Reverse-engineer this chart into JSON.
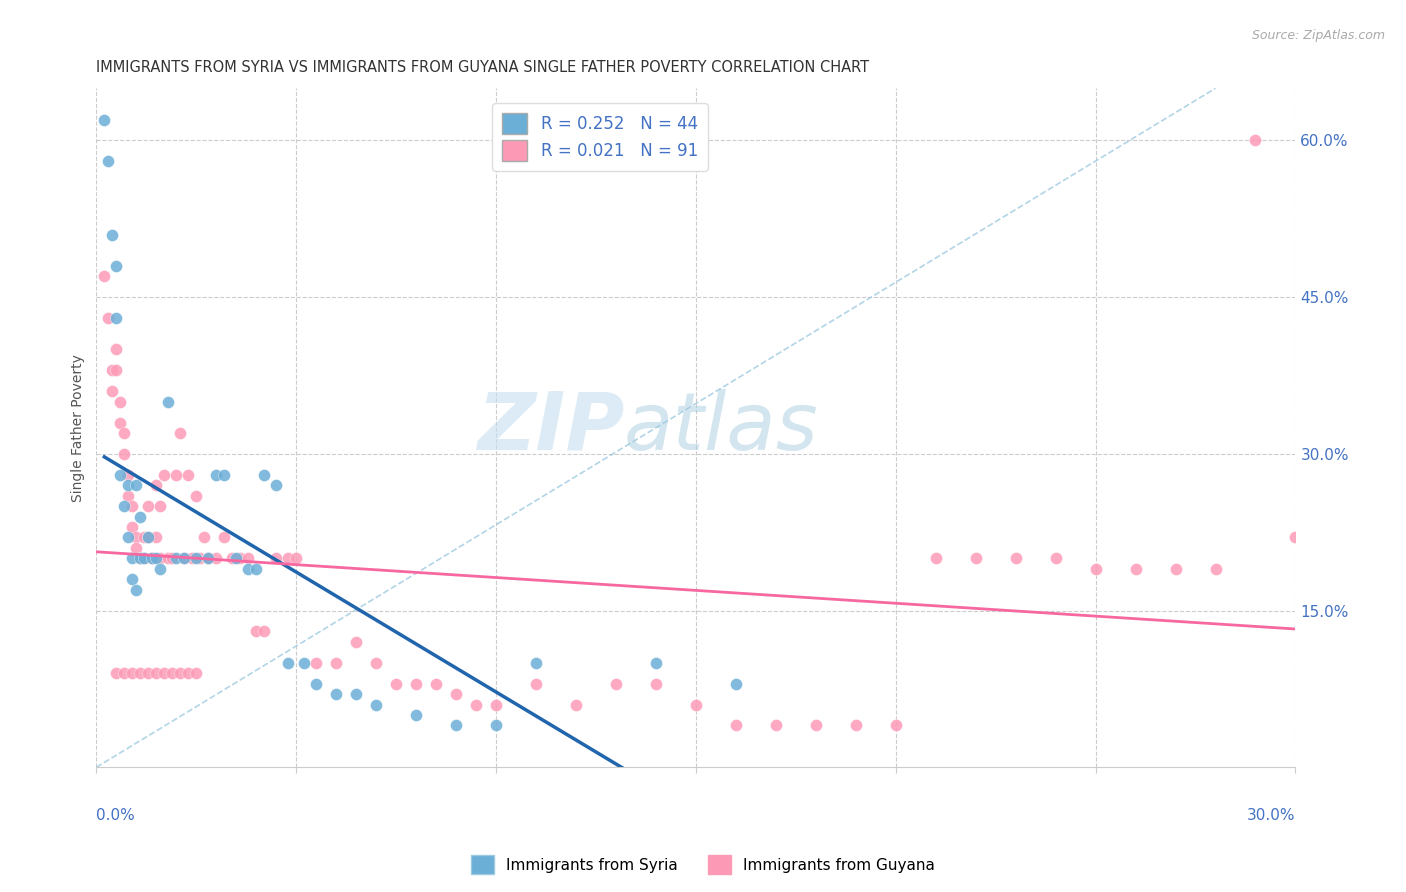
{
  "title": "IMMIGRANTS FROM SYRIA VS IMMIGRANTS FROM GUYANA SINGLE FATHER POVERTY CORRELATION CHART",
  "source": "Source: ZipAtlas.com",
  "ylabel": "Single Father Poverty",
  "yticks": [
    "15.0%",
    "30.0%",
    "45.0%",
    "60.0%"
  ],
  "ytick_vals": [
    0.15,
    0.3,
    0.45,
    0.6
  ],
  "xlim": [
    0.0,
    0.3
  ],
  "ylim": [
    0.0,
    0.65
  ],
  "R_syria": "0.252",
  "N_syria": "44",
  "R_guyana": "0.021",
  "N_guyana": "91",
  "color_syria": "#6baed6",
  "color_guyana": "#fc9ab6",
  "color_regression_syria": "#2166ac",
  "color_regression_guyana": "#f768a1",
  "color_diagonal": "#9ecae1",
  "watermark_zip": "ZIP",
  "watermark_atlas": "atlas",
  "syria_x": [
    0.002,
    0.003,
    0.004,
    0.005,
    0.005,
    0.006,
    0.007,
    0.008,
    0.008,
    0.009,
    0.009,
    0.01,
    0.01,
    0.011,
    0.011,
    0.012,
    0.013,
    0.014,
    0.015,
    0.016,
    0.018,
    0.02,
    0.022,
    0.025,
    0.028,
    0.03,
    0.032,
    0.035,
    0.038,
    0.04,
    0.042,
    0.045,
    0.048,
    0.052,
    0.055,
    0.06,
    0.065,
    0.07,
    0.08,
    0.09,
    0.1,
    0.11,
    0.14,
    0.16
  ],
  "syria_y": [
    0.62,
    0.58,
    0.51,
    0.48,
    0.43,
    0.28,
    0.25,
    0.27,
    0.22,
    0.2,
    0.18,
    0.17,
    0.27,
    0.24,
    0.2,
    0.2,
    0.22,
    0.2,
    0.2,
    0.19,
    0.35,
    0.2,
    0.2,
    0.2,
    0.2,
    0.28,
    0.28,
    0.2,
    0.19,
    0.19,
    0.28,
    0.27,
    0.1,
    0.1,
    0.08,
    0.07,
    0.07,
    0.06,
    0.05,
    0.04,
    0.04,
    0.1,
    0.1,
    0.08
  ],
  "guyana_x": [
    0.002,
    0.003,
    0.004,
    0.004,
    0.005,
    0.005,
    0.006,
    0.006,
    0.007,
    0.007,
    0.008,
    0.008,
    0.009,
    0.009,
    0.01,
    0.01,
    0.011,
    0.011,
    0.012,
    0.012,
    0.013,
    0.013,
    0.014,
    0.014,
    0.015,
    0.015,
    0.016,
    0.016,
    0.017,
    0.018,
    0.019,
    0.02,
    0.021,
    0.022,
    0.023,
    0.024,
    0.025,
    0.026,
    0.027,
    0.028,
    0.03,
    0.032,
    0.034,
    0.036,
    0.038,
    0.04,
    0.042,
    0.045,
    0.048,
    0.05,
    0.055,
    0.06,
    0.065,
    0.07,
    0.075,
    0.08,
    0.085,
    0.09,
    0.095,
    0.1,
    0.11,
    0.12,
    0.13,
    0.14,
    0.15,
    0.16,
    0.17,
    0.18,
    0.19,
    0.2,
    0.21,
    0.22,
    0.23,
    0.24,
    0.25,
    0.26,
    0.27,
    0.28,
    0.29,
    0.3,
    0.005,
    0.007,
    0.009,
    0.011,
    0.013,
    0.015,
    0.017,
    0.019,
    0.021,
    0.023,
    0.025
  ],
  "guyana_y": [
    0.47,
    0.43,
    0.38,
    0.36,
    0.4,
    0.38,
    0.35,
    0.33,
    0.32,
    0.3,
    0.28,
    0.26,
    0.25,
    0.23,
    0.22,
    0.21,
    0.2,
    0.2,
    0.22,
    0.2,
    0.25,
    0.22,
    0.2,
    0.2,
    0.27,
    0.22,
    0.25,
    0.2,
    0.28,
    0.2,
    0.2,
    0.28,
    0.32,
    0.2,
    0.28,
    0.2,
    0.26,
    0.2,
    0.22,
    0.2,
    0.2,
    0.22,
    0.2,
    0.2,
    0.2,
    0.13,
    0.13,
    0.2,
    0.2,
    0.2,
    0.1,
    0.1,
    0.12,
    0.1,
    0.08,
    0.08,
    0.08,
    0.07,
    0.06,
    0.06,
    0.08,
    0.06,
    0.08,
    0.08,
    0.06,
    0.04,
    0.04,
    0.04,
    0.04,
    0.04,
    0.2,
    0.2,
    0.2,
    0.2,
    0.19,
    0.19,
    0.19,
    0.19,
    0.6,
    0.22,
    0.09,
    0.09,
    0.09,
    0.09,
    0.09,
    0.09,
    0.09,
    0.09,
    0.09,
    0.09,
    0.09
  ]
}
